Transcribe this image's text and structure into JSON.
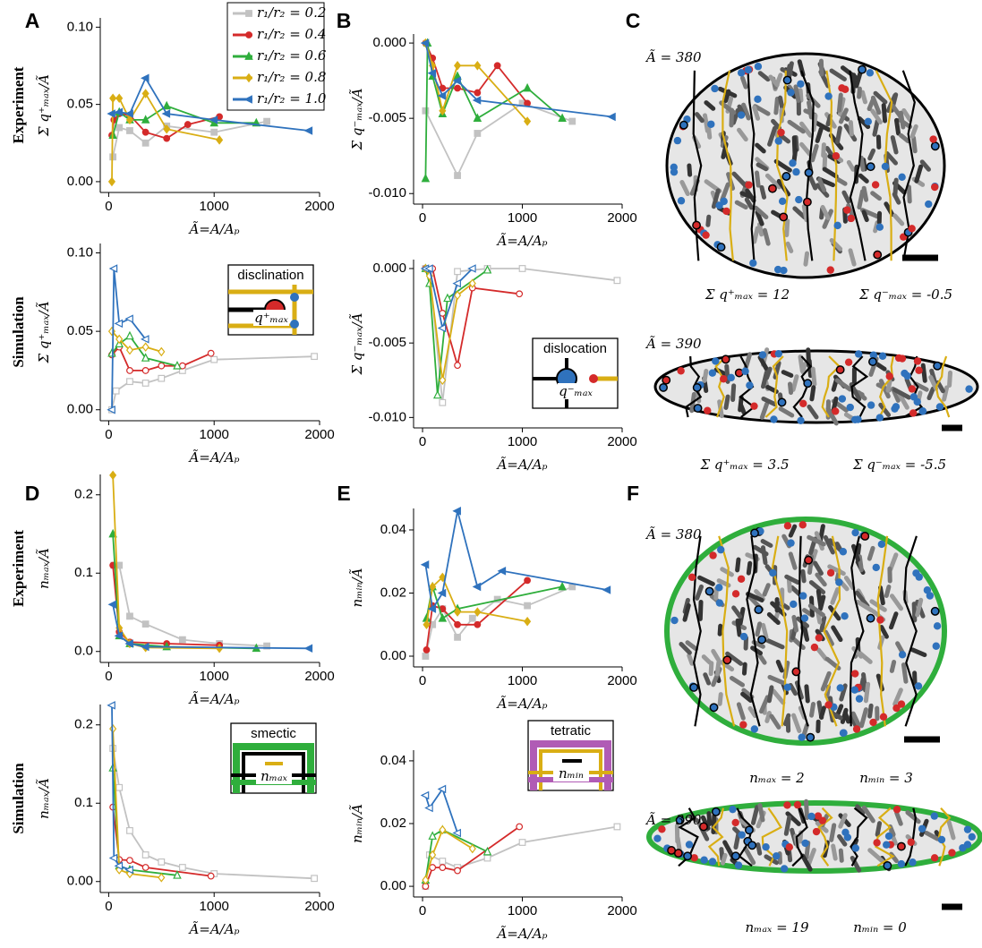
{
  "chart_data": [
    {
      "type": "line",
      "row_label": "Experiment",
      "ylabel": "Σ q⁺ₘₐₓ/Ã",
      "xlabel": "Ã=A/Aₚ",
      "marker_fill": "filled",
      "legend": "upper right",
      "xlim": [
        -80,
        2000
      ],
      "ylim": [
        -0.007,
        0.106
      ],
      "xticks": [
        0,
        1000,
        2000
      ],
      "yticks": [
        {
          "value": 0,
          "label": "0.00"
        },
        {
          "value": 0.05,
          "label": "0.05"
        },
        {
          "value": 0.1,
          "label": "0.10"
        }
      ],
      "series": [
        {
          "name": "r₁/r₂ = 0.2",
          "color": "#c2c2c2",
          "marker": "square",
          "x": [
            40,
            100,
            200,
            350,
            550,
            1000,
            1500
          ],
          "values": [
            0.016,
            0.035,
            0.033,
            0.025,
            0.036,
            0.032,
            0.039
          ]
        },
        {
          "name": "r₁/r₂ = 0.4",
          "color": "#d42a2a",
          "marker": "circle",
          "x": [
            30,
            50,
            100,
            200,
            350,
            550,
            750,
            1050
          ],
          "values": [
            0.03,
            0.04,
            0.044,
            0.043,
            0.032,
            0.028,
            0.037,
            0.042
          ]
        },
        {
          "name": "r₁/r₂ = 0.6",
          "color": "#2fae3c",
          "marker": "triangle",
          "x": [
            40,
            100,
            200,
            350,
            550,
            1000,
            1400
          ],
          "values": [
            0.03,
            0.045,
            0.04,
            0.04,
            0.049,
            0.038,
            0.038
          ]
        },
        {
          "name": "r₁/r₂ = 0.8",
          "color": "#d9ae14",
          "marker": "diamond",
          "x": [
            30,
            40,
            100,
            200,
            350,
            550,
            1050
          ],
          "values": [
            0.0,
            0.054,
            0.054,
            0.04,
            0.057,
            0.034,
            0.027
          ]
        },
        {
          "name": "r₁/r₂ = 1.0",
          "color": "#2f72bd",
          "marker": "left-triangle",
          "x": [
            30,
            100,
            200,
            350,
            550,
            1000,
            1900
          ],
          "values": [
            0.044,
            0.045,
            0.044,
            0.067,
            0.044,
            0.04,
            0.033
          ]
        }
      ]
    },
    {
      "type": "line",
      "row_label": "Simulation",
      "ylabel": "Σ q⁺ₘₐₓ/Ã",
      "xlabel": "Ã=A/Aₚ",
      "marker_fill": "open",
      "xlim": [
        -80,
        2000
      ],
      "ylim": [
        -0.007,
        0.106
      ],
      "xticks": [
        0,
        1000,
        2000
      ],
      "yticks": [
        {
          "value": 0,
          "label": "0.00"
        },
        {
          "value": 0.05,
          "label": "0.05"
        },
        {
          "value": 0.1,
          "label": "0.10"
        }
      ],
      "inset": {
        "title": "disclination",
        "label": "q⁺ₘₐₓ"
      },
      "series": [
        {
          "color": "#c2c2c2",
          "marker": "square",
          "x": [
            30,
            70,
            200,
            350,
            500,
            700,
            1000,
            1950
          ],
          "values": [
            0.0,
            0.012,
            0.018,
            0.017,
            0.02,
            0.025,
            0.032,
            0.034
          ]
        },
        {
          "color": "#d42a2a",
          "marker": "circle",
          "x": [
            30,
            100,
            200,
            350,
            500,
            700,
            970
          ],
          "values": [
            0.035,
            0.04,
            0.025,
            0.025,
            0.028,
            0.028,
            0.036
          ]
        },
        {
          "color": "#2fae3c",
          "marker": "triangle",
          "x": [
            30,
            100,
            200,
            350,
            650
          ],
          "values": [
            0.036,
            0.042,
            0.047,
            0.033,
            0.028
          ]
        },
        {
          "color": "#d9ae14",
          "marker": "diamond",
          "x": [
            30,
            100,
            200,
            350,
            500
          ],
          "values": [
            0.05,
            0.045,
            0.038,
            0.04,
            0.037
          ]
        },
        {
          "color": "#2f72bd",
          "marker": "left-triangle",
          "x": [
            30,
            50,
            100,
            200,
            350
          ],
          "values": [
            0.0,
            0.09,
            0.055,
            0.058,
            0.045
          ]
        }
      ]
    },
    {
      "type": "line",
      "ylabel": "Σ q⁻ₘₐₓ/Ã",
      "xlabel": "Ã=A/Aₚ",
      "marker_fill": "filled",
      "xlim": [
        -90,
        2000
      ],
      "ylim": [
        -0.0107,
        0.0006
      ],
      "xticks": [
        0,
        1000,
        2000
      ],
      "yticks": [
        {
          "value": -0.01,
          "label": "-0.010"
        },
        {
          "value": -0.005,
          "label": "-0.005"
        },
        {
          "value": 0,
          "label": "0.000"
        }
      ],
      "series": [
        {
          "color": "#c2c2c2",
          "marker": "square",
          "x": [
            30,
            350,
            550,
            1000,
            1500
          ],
          "values": [
            -0.0045,
            -0.0088,
            -0.006,
            -0.004,
            -0.0052
          ]
        },
        {
          "color": "#d42a2a",
          "marker": "circle",
          "x": [
            30,
            100,
            200,
            350,
            550,
            750,
            1050
          ],
          "values": [
            0,
            -0.001,
            -0.003,
            -0.003,
            -0.0033,
            -0.0015,
            -0.004
          ]
        },
        {
          "color": "#2fae3c",
          "marker": "triangle",
          "x": [
            30,
            50,
            100,
            200,
            350,
            550,
            1050,
            1400
          ],
          "values": [
            -0.009,
            0,
            -0.0022,
            -0.0047,
            -0.0022,
            -0.005,
            -0.003,
            -0.005
          ]
        },
        {
          "color": "#d9ae14",
          "marker": "diamond",
          "x": [
            30,
            100,
            200,
            350,
            550,
            1050
          ],
          "values": [
            0,
            -0.0015,
            -0.0045,
            -0.0015,
            -0.0015,
            -0.0052
          ]
        },
        {
          "color": "#2f72bd",
          "marker": "left-triangle",
          "x": [
            30,
            100,
            200,
            350,
            550,
            1900
          ],
          "values": [
            0,
            -0.002,
            -0.0035,
            -0.0025,
            -0.0038,
            -0.0049
          ]
        }
      ]
    },
    {
      "type": "line",
      "ylabel": "Σ q⁻ₘₐₓ/Ã",
      "xlabel": "Ã=A/Aₚ",
      "marker_fill": "open",
      "xlim": [
        -90,
        2000
      ],
      "ylim": [
        -0.0107,
        0.0006
      ],
      "xticks": [
        0,
        1000,
        2000
      ],
      "yticks": [
        {
          "value": -0.01,
          "label": "-0.010"
        },
        {
          "value": -0.005,
          "label": "-0.005"
        },
        {
          "value": 0,
          "label": "0.000"
        }
      ],
      "inset": {
        "title": "dislocation",
        "label": "q⁻ₘₐₓ"
      },
      "series": [
        {
          "color": "#c2c2c2",
          "marker": "square",
          "x": [
            30,
            70,
            200,
            350,
            650,
            1000,
            1950
          ],
          "values": [
            0,
            -0.0001,
            -0.009,
            -0.0002,
            0,
            0,
            -0.0008
          ]
        },
        {
          "color": "#d42a2a",
          "marker": "circle",
          "x": [
            30,
            100,
            200,
            350,
            500,
            970
          ],
          "values": [
            0,
            0,
            -0.003,
            -0.0065,
            -0.0013,
            -0.0017
          ]
        },
        {
          "color": "#2fae3c",
          "marker": "triangle",
          "x": [
            30,
            70,
            150,
            250,
            650
          ],
          "values": [
            0,
            -0.001,
            -0.0085,
            -0.002,
            -0.0001
          ]
        },
        {
          "color": "#d9ae14",
          "marker": "diamond",
          "x": [
            30,
            70,
            200,
            350,
            500
          ],
          "values": [
            0,
            -0.0005,
            -0.0075,
            -0.0018,
            -0.001
          ]
        },
        {
          "color": "#2f72bd",
          "marker": "left-triangle",
          "x": [
            30,
            70,
            200,
            350,
            500
          ],
          "values": [
            0,
            0,
            -0.004,
            -0.001,
            0
          ]
        }
      ]
    },
    {
      "type": "line",
      "row_label": "Experiment",
      "ylabel": "nₘₐₓ/Ã",
      "xlabel": "Ã=A/Aₚ",
      "marker_fill": "filled",
      "xlim": [
        -80,
        2000
      ],
      "ylim": [
        -0.014,
        0.226
      ],
      "xticks": [
        0,
        1000,
        2000
      ],
      "yticks": [
        {
          "value": 0,
          "label": "0.0"
        },
        {
          "value": 0.1,
          "label": "0.1"
        },
        {
          "value": 0.2,
          "label": "0.2"
        }
      ],
      "series": [
        {
          "color": "#c2c2c2",
          "marker": "square",
          "x": [
            50,
            100,
            200,
            350,
            700,
            1050,
            1500
          ],
          "values": [
            0.11,
            0.11,
            0.045,
            0.035,
            0.015,
            0.01,
            0.007
          ]
        },
        {
          "color": "#d42a2a",
          "marker": "circle",
          "x": [
            40,
            100,
            200,
            550,
            1050
          ],
          "values": [
            0.11,
            0.025,
            0.012,
            0.01,
            0.008
          ]
        },
        {
          "color": "#2fae3c",
          "marker": "triangle",
          "x": [
            40,
            100,
            200,
            550,
            1400
          ],
          "values": [
            0.15,
            0.02,
            0.01,
            0.006,
            0.004
          ]
        },
        {
          "color": "#d9ae14",
          "marker": "diamond",
          "x": [
            40,
            100,
            200,
            350,
            1050
          ],
          "values": [
            0.225,
            0.03,
            0.01,
            0.005,
            0.004
          ]
        },
        {
          "color": "#2f72bd",
          "marker": "left-triangle",
          "x": [
            40,
            100,
            200,
            350,
            1900
          ],
          "values": [
            0.06,
            0.02,
            0.01,
            0.006,
            0.004
          ]
        }
      ]
    },
    {
      "type": "line",
      "row_label": "Simulation",
      "ylabel": "nₘₐₓ/Ã",
      "xlabel": "Ã=A/Aₚ",
      "marker_fill": "open",
      "xlim": [
        -80,
        2000
      ],
      "ylim": [
        -0.014,
        0.226
      ],
      "xticks": [
        0,
        1000,
        2000
      ],
      "yticks": [
        {
          "value": 0,
          "label": "0.00"
        },
        {
          "value": 0.1,
          "label": "0.1"
        },
        {
          "value": 0.2,
          "label": "0.2"
        }
      ],
      "inset": {
        "title": "smectic",
        "label": "nₘₐₓ"
      },
      "series": [
        {
          "color": "#c2c2c2",
          "marker": "square",
          "x": [
            40,
            100,
            200,
            350,
            500,
            700,
            1000,
            1950
          ],
          "values": [
            0.17,
            0.12,
            0.065,
            0.034,
            0.025,
            0.018,
            0.01,
            0.004
          ]
        },
        {
          "color": "#d42a2a",
          "marker": "circle",
          "x": [
            40,
            100,
            200,
            350,
            970
          ],
          "values": [
            0.095,
            0.028,
            0.027,
            0.018,
            0.007
          ]
        },
        {
          "color": "#2fae3c",
          "marker": "triangle",
          "x": [
            40,
            100,
            200,
            650
          ],
          "values": [
            0.145,
            0.02,
            0.015,
            0.008
          ]
        },
        {
          "color": "#d9ae14",
          "marker": "diamond",
          "x": [
            40,
            100,
            200,
            500
          ],
          "values": [
            0.195,
            0.015,
            0.01,
            0.005
          ]
        },
        {
          "color": "#2f72bd",
          "marker": "left-triangle",
          "x": [
            30,
            50,
            100,
            200
          ],
          "values": [
            0.225,
            0.03,
            0.02,
            0.015
          ]
        }
      ]
    },
    {
      "type": "line",
      "ylabel": "nₘᵢₙ/Ã",
      "xlabel": "Ã=A/Aₚ",
      "marker_fill": "filled",
      "xlim": [
        -90,
        2000
      ],
      "ylim": [
        -0.0034,
        0.0468
      ],
      "xticks": [
        0,
        1000,
        2000
      ],
      "yticks": [
        {
          "value": 0,
          "label": "0.00"
        },
        {
          "value": 0.02,
          "label": "0.02"
        },
        {
          "value": 0.04,
          "label": "0.04"
        }
      ],
      "series": [
        {
          "color": "#c2c2c2",
          "marker": "square",
          "x": [
            30,
            100,
            200,
            350,
            500,
            750,
            1050,
            1500
          ],
          "values": [
            0,
            0.01,
            0.015,
            0.006,
            0.012,
            0.018,
            0.016,
            0.022
          ]
        },
        {
          "color": "#d42a2a",
          "marker": "circle",
          "x": [
            40,
            100,
            200,
            350,
            550,
            1050
          ],
          "values": [
            0.002,
            0.016,
            0.015,
            0.01,
            0.01,
            0.024
          ]
        },
        {
          "color": "#2fae3c",
          "marker": "triangle",
          "x": [
            40,
            100,
            200,
            350,
            1400
          ],
          "values": [
            0.012,
            0.022,
            0.012,
            0.015,
            0.022
          ]
        },
        {
          "color": "#d9ae14",
          "marker": "diamond",
          "x": [
            40,
            100,
            200,
            350,
            550,
            1050
          ],
          "values": [
            0.01,
            0.022,
            0.025,
            0.014,
            0.014,
            0.011
          ]
        },
        {
          "color": "#2f72bd",
          "marker": "left-triangle",
          "x": [
            30,
            100,
            200,
            350,
            550,
            800,
            1850
          ],
          "values": [
            0.029,
            0.015,
            0.02,
            0.046,
            0.022,
            0.027,
            0.021
          ]
        }
      ]
    },
    {
      "type": "line",
      "ylabel": "nₘᵢₙ/Ã",
      "xlabel": "Ã=A/Aₚ",
      "marker_fill": "open",
      "xlim": [
        -90,
        2000
      ],
      "ylim": [
        -0.0034,
        0.0434
      ],
      "xticks": [
        0,
        1000,
        2000
      ],
      "yticks": [
        {
          "value": 0,
          "label": "0.00"
        },
        {
          "value": 0.02,
          "label": "0.02"
        },
        {
          "value": 0.04,
          "label": "0.04"
        }
      ],
      "inset": {
        "title": "tetratic",
        "label": "nₘᵢₙ"
      },
      "series": [
        {
          "color": "#c2c2c2",
          "marker": "square",
          "x": [
            30,
            70,
            200,
            350,
            650,
            1000,
            1950
          ],
          "values": [
            0,
            0.01,
            0.008,
            0.006,
            0.009,
            0.014,
            0.019
          ]
        },
        {
          "color": "#d42a2a",
          "marker": "circle",
          "x": [
            30,
            100,
            200,
            350,
            970
          ],
          "values": [
            0,
            0.006,
            0.006,
            0.005,
            0.019
          ]
        },
        {
          "color": "#2fae3c",
          "marker": "triangle",
          "x": [
            30,
            100,
            200,
            650
          ],
          "values": [
            0.002,
            0.016,
            0.018,
            0.011
          ]
        },
        {
          "color": "#d9ae14",
          "marker": "diamond",
          "x": [
            30,
            100,
            200,
            500
          ],
          "values": [
            0.002,
            0.01,
            0.018,
            0.012
          ]
        },
        {
          "color": "#2f72bd",
          "marker": "left-triangle",
          "x": [
            30,
            70,
            200,
            350
          ],
          "values": [
            0.029,
            0.025,
            0.031,
            0.017
          ]
        }
      ]
    }
  ],
  "figure": {
    "panel_labels": [
      "A",
      "B",
      "C",
      "D",
      "E",
      "F"
    ],
    "C": [
      {
        "area": "Ã = 380",
        "left": "Σ q⁺ₘₐₓ = 12",
        "right": "Σ q⁻ₘₐₓ = -0.5"
      },
      {
        "area": "Ã = 390",
        "left": "Σ q⁺ₘₐₓ = 3.5",
        "right": "Σ q⁻ₘₐₓ = -5.5"
      }
    ],
    "F": [
      {
        "area": "Ã = 380",
        "left": "nₘₐₓ = 2",
        "right": "nₘᵢₙ = 3"
      },
      {
        "area": "Ã = 390",
        "left": "nₘₐₓ = 19",
        "right": "nₘᵢₙ = 0"
      }
    ]
  }
}
